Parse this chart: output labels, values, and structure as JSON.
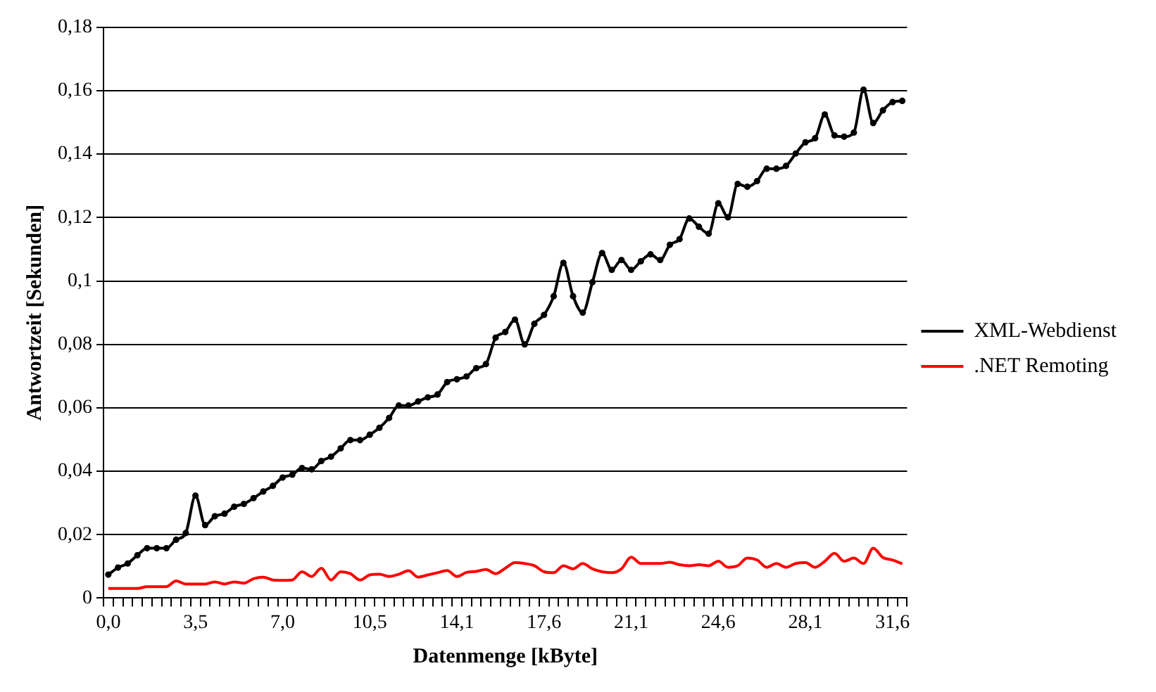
{
  "chart_data": {
    "type": "line",
    "xlabel": "Datenmenge [kByte]",
    "ylabel": "Antwortzeit [Sekunden]",
    "categories": [
      "0,0",
      null,
      null,
      null,
      null,
      null,
      null,
      null,
      null,
      "3,5",
      null,
      null,
      null,
      null,
      null,
      null,
      null,
      null,
      "7,0",
      null,
      null,
      null,
      null,
      null,
      null,
      null,
      null,
      "10,5",
      null,
      null,
      null,
      null,
      null,
      null,
      null,
      null,
      "14,1",
      null,
      null,
      null,
      null,
      null,
      null,
      null,
      null,
      "17,6",
      null,
      null,
      null,
      null,
      null,
      null,
      null,
      null,
      "21,1",
      null,
      null,
      null,
      null,
      null,
      null,
      null,
      null,
      "24,6",
      null,
      null,
      null,
      null,
      null,
      null,
      null,
      null,
      "28,1",
      null,
      null,
      null,
      null,
      null,
      null,
      null,
      null,
      "31,6",
      null
    ],
    "series": [
      {
        "name": "XML-Webdienst",
        "color": "#000000",
        "marker": "circle",
        "values": [
          0.0074,
          0.0096,
          0.0109,
          0.0135,
          0.0157,
          0.0157,
          0.0157,
          0.0184,
          0.0205,
          0.0323,
          0.023,
          0.0258,
          0.0266,
          0.0288,
          0.0297,
          0.0315,
          0.0336,
          0.0354,
          0.038,
          0.0389,
          0.041,
          0.0406,
          0.0432,
          0.0446,
          0.0472,
          0.0498,
          0.0498,
          0.0515,
          0.0537,
          0.0568,
          0.0607,
          0.0607,
          0.062,
          0.0633,
          0.0642,
          0.0681,
          0.069,
          0.0699,
          0.0725,
          0.0738,
          0.0821,
          0.0839,
          0.0878,
          0.08,
          0.0865,
          0.0893,
          0.0952,
          0.1057,
          0.0952,
          0.09,
          0.0996,
          0.1088,
          0.1035,
          0.1066,
          0.1035,
          0.1062,
          0.1084,
          0.1066,
          0.1114,
          0.1132,
          0.1197,
          0.1171,
          0.1149,
          0.1245,
          0.1201,
          0.1306,
          0.1297,
          0.1315,
          0.1354,
          0.1354,
          0.1363,
          0.1402,
          0.1437,
          0.145,
          0.1525,
          0.1459,
          0.1455,
          0.1468,
          0.1603,
          0.1498,
          0.1538,
          0.1564,
          0.1568
        ]
      },
      {
        "name": ".NET Remoting",
        "color": "#ff0000",
        "marker": "none",
        "values": [
          0.003,
          0.003,
          0.003,
          0.003,
          0.0036,
          0.0036,
          0.0036,
          0.0054,
          0.0044,
          0.0044,
          0.0044,
          0.0051,
          0.0044,
          0.0051,
          0.0047,
          0.0061,
          0.0066,
          0.0057,
          0.0056,
          0.0057,
          0.0083,
          0.0068,
          0.0094,
          0.0057,
          0.0083,
          0.0077,
          0.0057,
          0.0073,
          0.0075,
          0.0068,
          0.0075,
          0.0086,
          0.0066,
          0.0073,
          0.008,
          0.0087,
          0.0068,
          0.0081,
          0.0084,
          0.009,
          0.0077,
          0.0094,
          0.0112,
          0.0109,
          0.0102,
          0.0083,
          0.008,
          0.0102,
          0.0092,
          0.0109,
          0.0092,
          0.0083,
          0.008,
          0.0092,
          0.0129,
          0.0109,
          0.0109,
          0.0109,
          0.0113,
          0.0105,
          0.0102,
          0.0105,
          0.0102,
          0.0116,
          0.0097,
          0.0102,
          0.0126,
          0.012,
          0.0097,
          0.0109,
          0.0097,
          0.0109,
          0.0112,
          0.0097,
          0.0116,
          0.0141,
          0.0116,
          0.0126,
          0.0109,
          0.0157,
          0.0128,
          0.012,
          0.0108
        ]
      }
    ],
    "ylim": [
      0,
      0.18
    ],
    "yticks": [
      {
        "value": 0,
        "label": "0"
      },
      {
        "value": 0.02,
        "label": "0,02"
      },
      {
        "value": 0.04,
        "label": "0,04"
      },
      {
        "value": 0.06,
        "label": "0,06"
      },
      {
        "value": 0.08,
        "label": "0,08"
      },
      {
        "value": 0.1,
        "label": "0,1"
      },
      {
        "value": 0.12,
        "label": "0,12"
      },
      {
        "value": 0.14,
        "label": "0,14"
      },
      {
        "value": 0.16,
        "label": "0,16"
      },
      {
        "value": 0.18,
        "label": "0,18"
      }
    ],
    "grid": "y",
    "legend": "right",
    "line_style": "solid"
  }
}
